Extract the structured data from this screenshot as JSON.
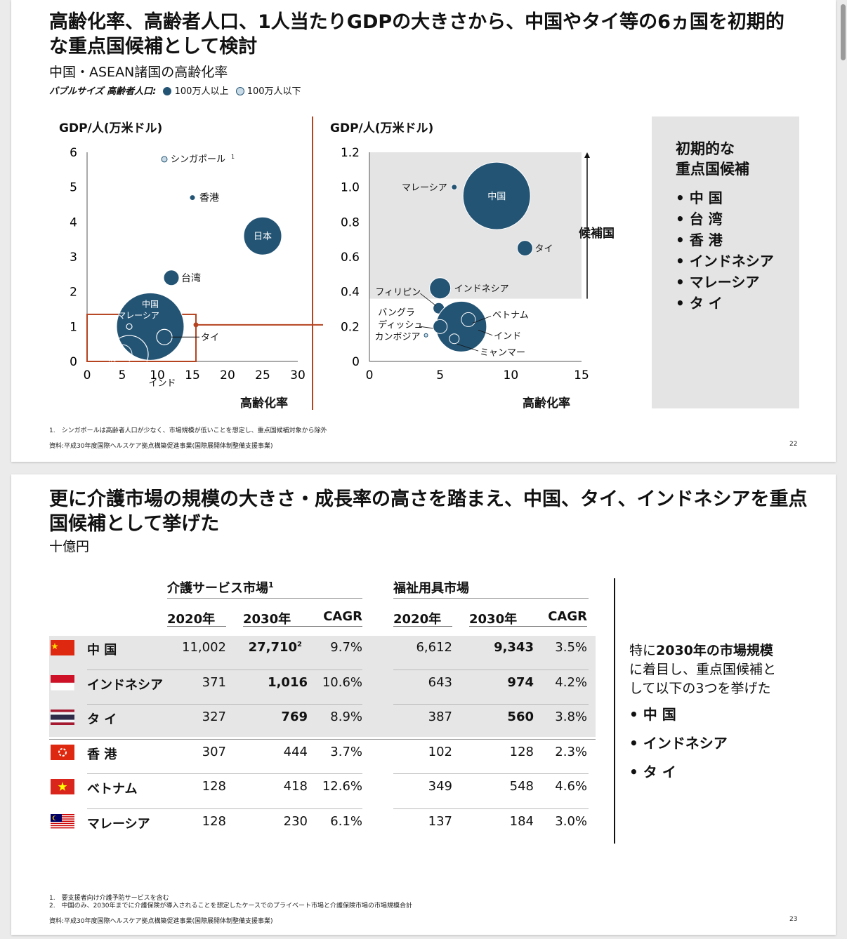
{
  "slide1": {
    "title": "高齢化率、高齢者人口、1人当たりGDPの大きさから、中国やタイ等の6ヵ国を初期的な重点国候補として検討",
    "subtitle": "中国・ASEAN諸国の高齢化率",
    "legend": {
      "label": "バブルサイズ 高齢者人口:",
      "large": "100万人以上",
      "small": "100万人以下"
    },
    "left_chart": {
      "ylabel": "GDP/人(万米ドル)",
      "xlabel": "高齢化率",
      "yticks": [
        "0",
        "1",
        "2",
        "3",
        "4",
        "5",
        "6"
      ],
      "xticks": [
        "0",
        "5",
        "10",
        "15",
        "20",
        "25",
        "30"
      ]
    },
    "right_chart": {
      "ylabel": "GDP/人(万米ドル)",
      "xlabel": "高齢化率",
      "yticks": [
        "0",
        "0.2",
        "0.4",
        "0.6",
        "0.8",
        "1.0",
        "1.2"
      ],
      "xticks": [
        "0",
        "5",
        "10",
        "15"
      ],
      "candidate_label": "候補国"
    },
    "side_panel": {
      "title_line1": "初期的な",
      "title_line2": "重点国候補",
      "items": [
        "中 国",
        "台 湾",
        "香 港",
        "インドネシア",
        "マレーシア",
        "タ イ"
      ]
    },
    "footnote": "1.　シンガポールは高齢者人口が少なく、市場規模が低いことを想定し、重点国候補対象から除外",
    "source": "資料:平成30年度国際ヘルスケア拠点構築促進事業(国際展開体制整備支援事業)",
    "page": "22"
  },
  "chart_data": [
    {
      "type": "scatter",
      "title": "",
      "xlabel": "高齢化率",
      "ylabel": "GDP/人(万米ドル)",
      "xlim": [
        0,
        30
      ],
      "ylim": [
        0,
        6
      ],
      "points": [
        {
          "label": "シンガポール",
          "sup": "1",
          "x": 11,
          "y": 5.8,
          "size": "small"
        },
        {
          "label": "香港",
          "x": 15,
          "y": 4.7,
          "size": "small"
        },
        {
          "label": "日本",
          "x": 25,
          "y": 3.6,
          "size": "large"
        },
        {
          "label": "台湾",
          "x": 12,
          "y": 2.4,
          "size": "medium"
        },
        {
          "label": "中国",
          "x": 9,
          "y": 1.0,
          "size": "xlarge"
        },
        {
          "label": "マレーシア",
          "x": 6,
          "y": 1.0,
          "size": "small"
        },
        {
          "label": "タイ",
          "x": 11,
          "y": 0.7,
          "size": "medium"
        },
        {
          "label": "インド",
          "x": 6,
          "y": 0.2,
          "size": "large"
        }
      ]
    },
    {
      "type": "scatter",
      "title": "",
      "xlabel": "高齢化率",
      "ylabel": "GDP/人(万米ドル)",
      "xlim": [
        0,
        15
      ],
      "ylim": [
        0,
        1.2
      ],
      "points": [
        {
          "label": "マレーシア",
          "x": 6,
          "y": 1.0,
          "size": "small"
        },
        {
          "label": "中国",
          "x": 9,
          "y": 0.95,
          "size": "xlarge"
        },
        {
          "label": "タイ",
          "x": 11,
          "y": 0.65,
          "size": "medium"
        },
        {
          "label": "フィリピン",
          "x": 5,
          "y": 0.42,
          "size": "medium"
        },
        {
          "label": "インドネシア",
          "x": 5,
          "y": 0.42,
          "size": "medium"
        },
        {
          "label": "バングラディッシュ",
          "x": 5,
          "y": 0.31,
          "size": "small"
        },
        {
          "label": "ベトナム",
          "x": 7,
          "y": 0.24,
          "size": "small"
        },
        {
          "label": "インド",
          "x": 6.5,
          "y": 0.2,
          "size": "large"
        },
        {
          "label": "カンボジア",
          "x": 4,
          "y": 0.15,
          "size": "tiny"
        },
        {
          "label": "ミャンマー",
          "x": 6,
          "y": 0.12,
          "size": "small"
        }
      ]
    }
  ],
  "slide2": {
    "title": "更に介護市場の規模の大きさ・成長率の高さを踏まえ、中国、タイ、インドネシアを重点国候補として挙げた",
    "unit": "十億円",
    "group1": "介護サービス市場",
    "group1_sup": "1",
    "group2": "福祉用具市場",
    "columns": [
      "2020年",
      "2030年",
      "CAGR",
      "2020年",
      "2030年",
      "CAGR"
    ],
    "rows": [
      {
        "country": "中 国",
        "flag": "cn",
        "v": [
          "11,002",
          "27,710",
          "9.7%",
          "6,612",
          "9,343",
          "3.5%"
        ],
        "sup": "2"
      },
      {
        "country": "インドネシア",
        "flag": "id",
        "v": [
          "371",
          "1,016",
          "10.6%",
          "643",
          "974",
          "4.2%"
        ]
      },
      {
        "country": "タ イ",
        "flag": "th",
        "v": [
          "327",
          "769",
          "8.9%",
          "387",
          "560",
          "3.8%"
        ]
      },
      {
        "country": "香 港",
        "flag": "hk",
        "v": [
          "307",
          "444",
          "3.7%",
          "102",
          "128",
          "2.3%"
        ]
      },
      {
        "country": "ベトナム",
        "flag": "vn",
        "v": [
          "128",
          "418",
          "12.6%",
          "349",
          "548",
          "4.6%"
        ]
      },
      {
        "country": "マレーシア",
        "flag": "my",
        "v": [
          "128",
          "230",
          "6.1%",
          "137",
          "184",
          "3.0%"
        ]
      }
    ],
    "side_text": {
      "line1_bold": "2030年の市場規模",
      "line1_pre": "特に",
      "line2": "に着目し、重点国候補と",
      "line3": "して以下の3つを挙げた",
      "items": [
        "中 国",
        "インドネシア",
        "タ イ"
      ]
    },
    "footnote1": "1.　要支援者向け介護予防サービスを含む",
    "footnote2": "2.　中国のみ、2030年までに介護保険が導入されることを想定したケースでのプライベート市場と介護保険市場の市場規模合計",
    "source": "資料:平成30年度国際ヘルスケア拠点構築促進事業(国際展開体制整備支援事業)",
    "page": "23"
  },
  "colors": {
    "bubble": "#245474",
    "bubble_light": "#c9dbe6",
    "accent_red": "#b5431f",
    "panel_gray": "#e4e4e4"
  }
}
